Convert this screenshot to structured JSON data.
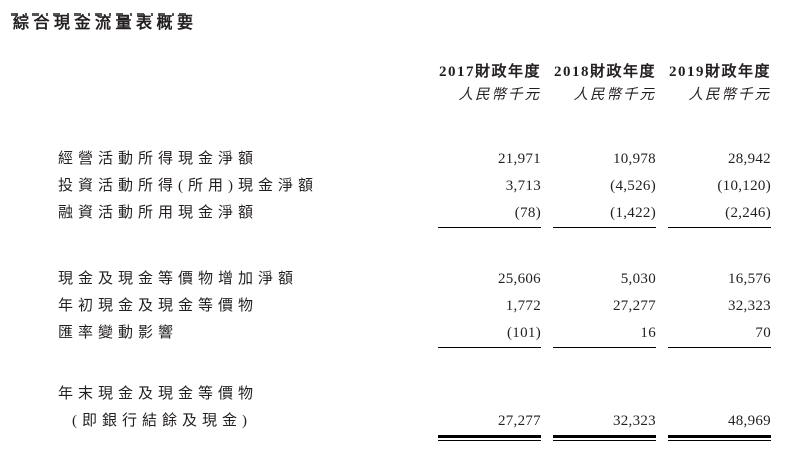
{
  "page": {
    "title": "綜合現金流量表概要",
    "background_color": "#ffffff",
    "text_color": "#231f20",
    "rule_color": "#000000"
  },
  "table": {
    "columns": [
      {
        "year_label": "2017財政年度",
        "unit_label": "人民幣千元"
      },
      {
        "year_label": "2018財政年度",
        "unit_label": "人民幣千元"
      },
      {
        "year_label": "2019財政年度",
        "unit_label": "人民幣千元"
      }
    ],
    "sections": [
      {
        "rule_after": "single",
        "rows": [
          {
            "label": "經營活動所得現金淨額",
            "values": [
              "21,971",
              "10,978",
              "28,942"
            ]
          },
          {
            "label": "投資活動所得(所用)現金淨額",
            "values": [
              "3,713",
              "(4,526)",
              "(10,120)"
            ]
          },
          {
            "label": "融資活動所用現金淨額",
            "values": [
              "(78)",
              "(1,422)",
              "(2,246)"
            ]
          }
        ]
      },
      {
        "rule_after": "single",
        "rows": [
          {
            "label": "現金及現金等價物增加淨額",
            "values": [
              "25,606",
              "5,030",
              "16,576"
            ]
          },
          {
            "label": "年初現金及現金等價物",
            "values": [
              "1,772",
              "27,277",
              "32,323"
            ]
          },
          {
            "label": "匯率變動影響",
            "values": [
              "(101)",
              "16",
              "70"
            ]
          }
        ]
      },
      {
        "rule_after": "double",
        "rows": [
          {
            "label": "年末現金及現金等價物",
            "values": [
              "",
              "",
              ""
            ]
          },
          {
            "label": "(即銀行結餘及現金)",
            "values": [
              "27,277",
              "32,323",
              "48,969"
            ]
          }
        ]
      }
    ]
  }
}
